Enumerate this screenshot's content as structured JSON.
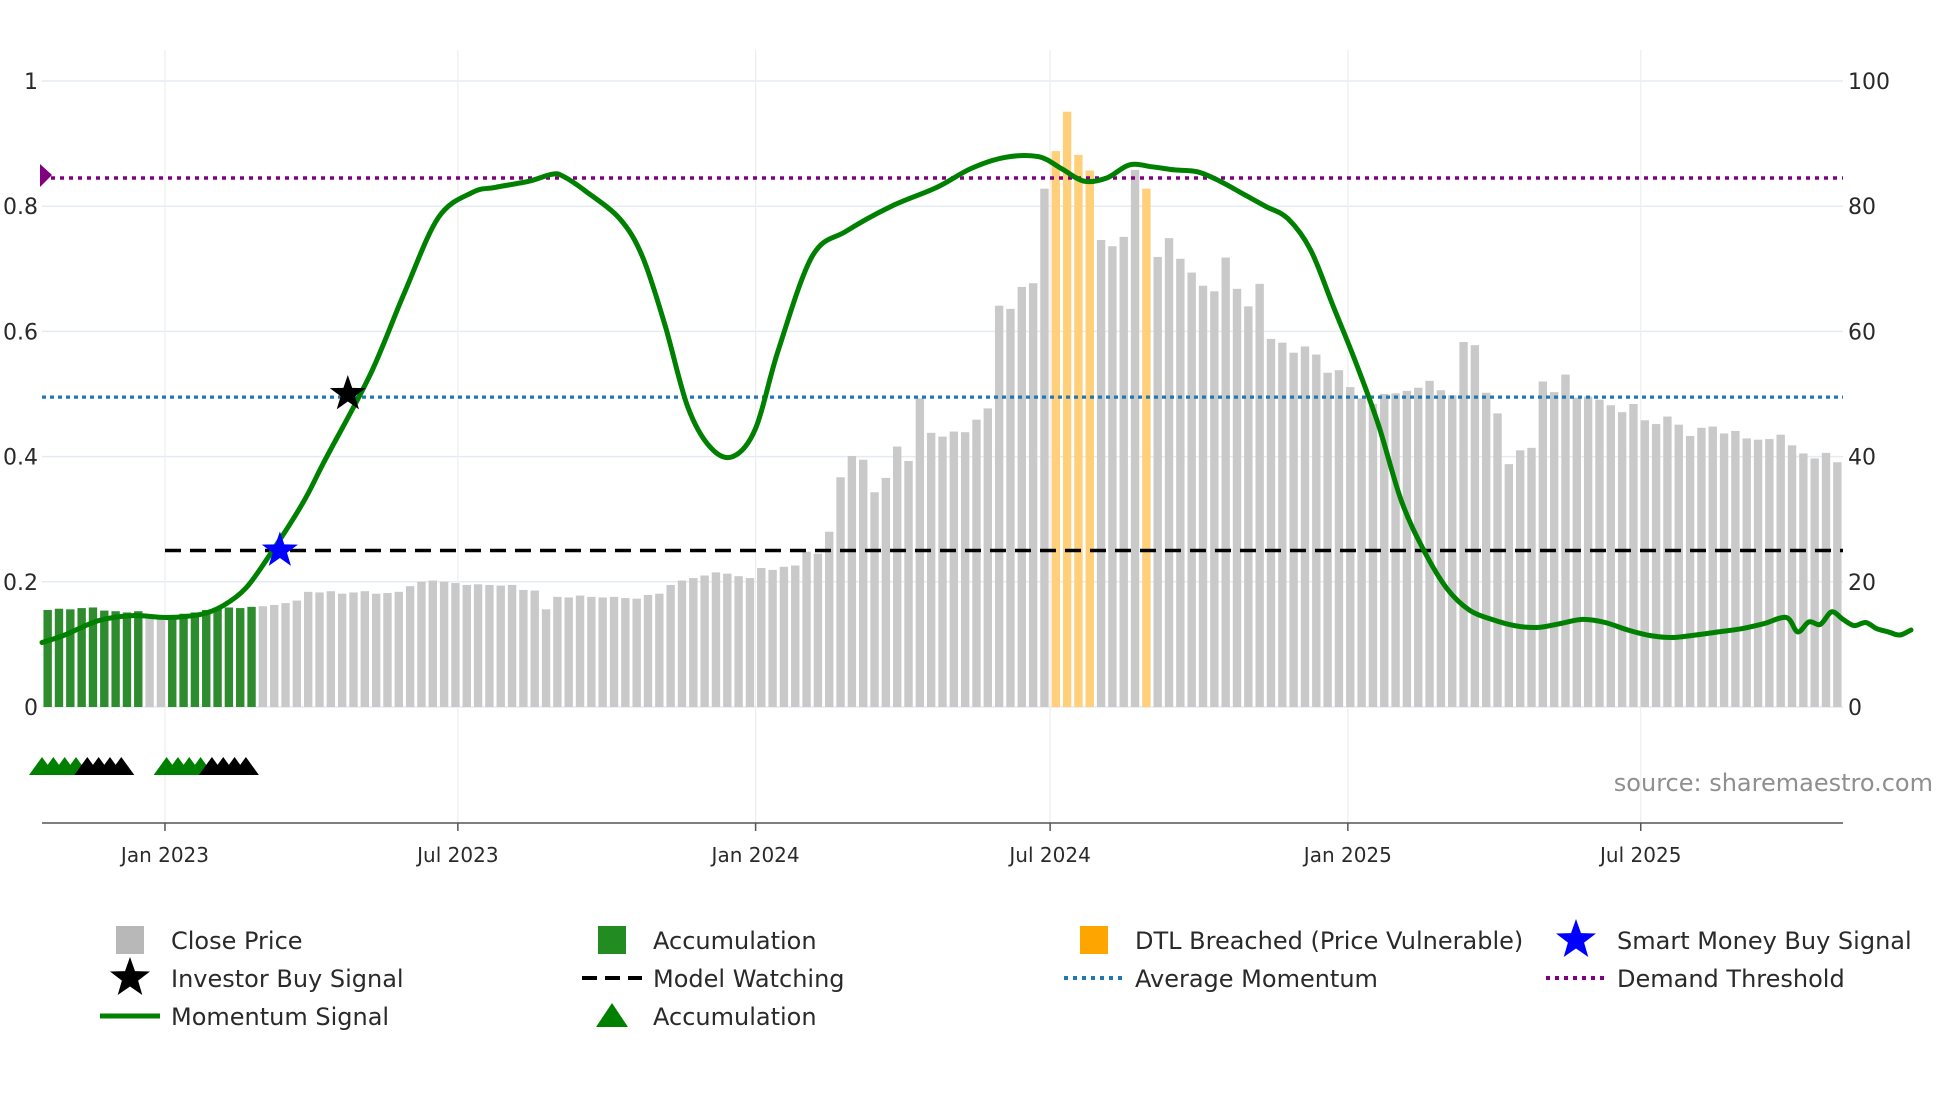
{
  "chart_data": {
    "type": "bar",
    "title": "",
    "source_text": "source: sharemaestro.com",
    "x_axis": {
      "start": "2022-10-17",
      "end": "2025-11-03",
      "ticks": [
        {
          "date": "2023-01-01",
          "label": "Jan 2023"
        },
        {
          "date": "2023-07-01",
          "label": "Jul 2023"
        },
        {
          "date": "2024-01-01",
          "label": "Jan 2024"
        },
        {
          "date": "2024-07-01",
          "label": "Jul 2024"
        },
        {
          "date": "2025-01-01",
          "label": "Jan 2025"
        },
        {
          "date": "2025-07-01",
          "label": "Jul 2025"
        }
      ]
    },
    "y_left": {
      "min": 0,
      "max": 1,
      "ticks": [
        0,
        0.2,
        0.4,
        0.6,
        0.8,
        1
      ],
      "tick_labels": [
        "0",
        "0.2",
        "0.4",
        "0.6",
        "0.8",
        "1"
      ]
    },
    "y_right": {
      "min": 0,
      "max": 100,
      "ticks": [
        0,
        20,
        40,
        60,
        80,
        100
      ],
      "tick_labels": [
        "0",
        "20",
        "40",
        "60",
        "80",
        "100"
      ]
    },
    "close_price": {
      "name": "Close Price",
      "start": "2022-10-17",
      "interval_days": 7,
      "values": [
        15.5,
        15.7,
        15.6,
        15.8,
        15.9,
        15.4,
        15.3,
        15.1,
        15.3,
        14.8,
        14.6,
        14.7,
        14.9,
        15.1,
        15.5,
        15.8,
        15.9,
        15.8,
        16.0,
        16.1,
        16.3,
        16.6,
        17.0,
        18.4,
        18.3,
        18.5,
        18.1,
        18.3,
        18.5,
        18.1,
        18.2,
        18.4,
        19.3,
        20.0,
        20.2,
        20.0,
        19.8,
        19.5,
        19.6,
        19.5,
        19.4,
        19.5,
        18.7,
        18.6,
        15.6,
        17.6,
        17.5,
        17.8,
        17.6,
        17.5,
        17.6,
        17.4,
        17.3,
        17.9,
        18.1,
        19.5,
        20.2,
        20.6,
        21.0,
        21.5,
        21.3,
        20.9,
        20.6,
        22.2,
        21.9,
        22.4,
        22.6,
        24.8,
        24.5,
        28.0,
        36.7,
        40.1,
        39.5,
        34.3,
        36.6,
        41.6,
        39.3,
        49.3,
        43.8,
        43.2,
        44.0,
        43.9,
        45.9,
        47.7,
        64.1,
        63.6,
        67.1,
        67.7,
        82.8,
        88.8,
        95.1,
        88.2,
        85.7,
        74.6,
        73.6,
        75.1,
        85.8,
        82.8,
        71.9,
        74.9,
        71.6,
        69.4,
        67.3,
        66.4,
        71.8,
        66.8,
        64.0,
        67.6,
        58.8,
        58.2,
        56.6,
        57.6,
        56.3,
        53.4,
        53.8,
        51.1,
        49.3,
        48.4,
        50.0,
        50.1,
        50.5,
        51.0,
        52.1,
        50.6,
        49.8,
        58.3,
        57.8,
        50.2,
        46.9,
        38.8,
        41.0,
        41.4,
        52.0,
        50.3,
        53.1,
        49.4,
        49.6,
        49.1,
        48.2,
        47.1,
        48.4,
        45.8,
        45.2,
        46.4,
        45.1,
        43.3,
        44.6,
        44.8,
        43.7,
        44.1,
        42.9,
        42.7,
        42.8,
        43.5,
        41.8,
        40.5,
        39.7,
        40.6,
        39.1
      ]
    },
    "accumulation_ranges": [
      [
        0,
        8
      ],
      [
        11,
        18
      ]
    ],
    "dtl_breached_ranges": [
      [
        89,
        92
      ],
      [
        97,
        97
      ]
    ],
    "momentum_signal": {
      "name": "Momentum Signal",
      "points": [
        [
          "2022-10-17",
          0.103
        ],
        [
          "2022-10-31",
          0.115
        ],
        [
          "2022-11-21",
          0.138
        ],
        [
          "2022-12-12",
          0.146
        ],
        [
          "2023-01-02",
          0.143
        ],
        [
          "2023-01-23",
          0.148
        ],
        [
          "2023-02-06",
          0.162
        ],
        [
          "2023-02-20",
          0.19
        ],
        [
          "2023-03-06",
          0.24
        ],
        [
          "2023-03-27",
          0.325
        ],
        [
          "2023-04-10",
          0.395
        ],
        [
          "2023-05-08",
          0.532
        ],
        [
          "2023-05-29",
          0.662
        ],
        [
          "2023-06-19",
          0.782
        ],
        [
          "2023-07-10",
          0.822
        ],
        [
          "2023-07-24",
          0.83
        ],
        [
          "2023-08-14",
          0.84
        ],
        [
          "2023-08-28",
          0.851
        ],
        [
          "2023-09-04",
          0.848
        ],
        [
          "2023-09-18",
          0.824
        ],
        [
          "2023-10-09",
          0.78
        ],
        [
          "2023-10-23",
          0.72
        ],
        [
          "2023-11-06",
          0.61
        ],
        [
          "2023-11-20",
          0.48
        ],
        [
          "2023-12-04",
          0.415
        ],
        [
          "2023-12-18",
          0.4
        ],
        [
          "2024-01-01",
          0.445
        ],
        [
          "2024-01-15",
          0.57
        ],
        [
          "2024-02-05",
          0.72
        ],
        [
          "2024-02-26",
          0.76
        ],
        [
          "2024-03-25",
          0.8
        ],
        [
          "2024-04-22",
          0.83
        ],
        [
          "2024-05-13",
          0.86
        ],
        [
          "2024-06-03",
          0.878
        ],
        [
          "2024-06-24",
          0.879
        ],
        [
          "2024-07-08",
          0.86
        ],
        [
          "2024-07-22",
          0.84
        ],
        [
          "2024-08-05",
          0.845
        ],
        [
          "2024-08-19",
          0.866
        ],
        [
          "2024-09-02",
          0.863
        ],
        [
          "2024-09-16",
          0.858
        ],
        [
          "2024-09-30",
          0.855
        ],
        [
          "2024-10-14",
          0.84
        ],
        [
          "2024-10-28",
          0.82
        ],
        [
          "2024-11-11",
          0.8
        ],
        [
          "2024-11-25",
          0.78
        ],
        [
          "2024-12-09",
          0.73
        ],
        [
          "2024-12-23",
          0.64
        ],
        [
          "2025-01-06",
          0.55
        ],
        [
          "2025-01-20",
          0.45
        ],
        [
          "2025-02-03",
          0.33
        ],
        [
          "2025-02-17",
          0.25
        ],
        [
          "2025-03-03",
          0.19
        ],
        [
          "2025-03-17",
          0.155
        ],
        [
          "2025-03-31",
          0.14
        ],
        [
          "2025-04-14",
          0.13
        ],
        [
          "2025-04-28",
          0.127
        ],
        [
          "2025-05-12",
          0.133
        ],
        [
          "2025-05-26",
          0.14
        ],
        [
          "2025-06-09",
          0.135
        ],
        [
          "2025-06-23",
          0.123
        ],
        [
          "2025-07-07",
          0.114
        ],
        [
          "2025-07-21",
          0.111
        ],
        [
          "2025-08-04",
          0.115
        ],
        [
          "2025-08-18",
          0.12
        ],
        [
          "2025-09-01",
          0.125
        ],
        [
          "2025-09-15",
          0.133
        ],
        [
          "2025-09-29",
          0.143
        ],
        [
          "2025-10-06",
          0.12
        ],
        [
          "2025-10-13",
          0.136
        ],
        [
          "2025-10-20",
          0.132
        ],
        [
          "2025-10-27",
          0.152
        ],
        [
          "2025-11-03",
          0.14
        ],
        [
          "2025-11-10",
          0.13
        ],
        [
          "2025-11-17",
          0.135
        ],
        [
          "2025-11-24",
          0.125
        ],
        [
          "2025-12-01",
          0.12
        ],
        [
          "2025-12-08",
          0.115
        ],
        [
          "2025-12-15",
          0.123
        ]
      ]
    },
    "model_watching": {
      "name": "Model Watching",
      "value": 0.25,
      "start": "2023-01-01"
    },
    "average_momentum": {
      "name": "Average Momentum",
      "value": 0.495
    },
    "demand_threshold": {
      "name": "Demand Threshold",
      "value": 0.845
    },
    "investor_buy_signal": {
      "name": "Investor Buy Signal",
      "date": "2023-04-24",
      "value": 0.5
    },
    "smart_money_buy_signal": {
      "name": "Smart Money Buy Signal",
      "date": "2023-03-13",
      "value": 0.25
    },
    "accumulation_triangles": {
      "name": "Accumulation",
      "green": [
        "2022-10-17",
        "2022-10-24",
        "2022-10-31",
        "2022-11-07",
        "2023-01-02",
        "2023-01-09",
        "2023-01-16",
        "2023-01-23"
      ],
      "black": [
        "2022-11-14",
        "2022-11-21",
        "2022-11-28",
        "2022-12-05",
        "2023-01-30",
        "2023-02-06",
        "2023-02-13",
        "2023-02-20"
      ]
    },
    "legend": [
      {
        "key": "close",
        "label": "Close Price",
        "color": "#b8b8b8"
      },
      {
        "key": "accum-bar",
        "label": "Accumulation",
        "color": "#228b22"
      },
      {
        "key": "dtl",
        "label": "DTL Breached (Price Vulnerable)",
        "color": "#ffa500"
      },
      {
        "key": "smart",
        "label": "Smart Money Buy Signal",
        "color": "#0000ff"
      },
      {
        "key": "investor",
        "label": "Investor Buy Signal",
        "color": "#000000"
      },
      {
        "key": "watching",
        "label": "Model Watching",
        "color": "#000000"
      },
      {
        "key": "avgmom",
        "label": "Average Momentum",
        "color": "#1f77b4"
      },
      {
        "key": "demand",
        "label": "Demand Threshold",
        "color": "#800080"
      },
      {
        "key": "momentum",
        "label": "Momentum Signal",
        "color": "#008000"
      },
      {
        "key": "accum-tri",
        "label": "Accumulation",
        "color": "#008000"
      }
    ]
  }
}
